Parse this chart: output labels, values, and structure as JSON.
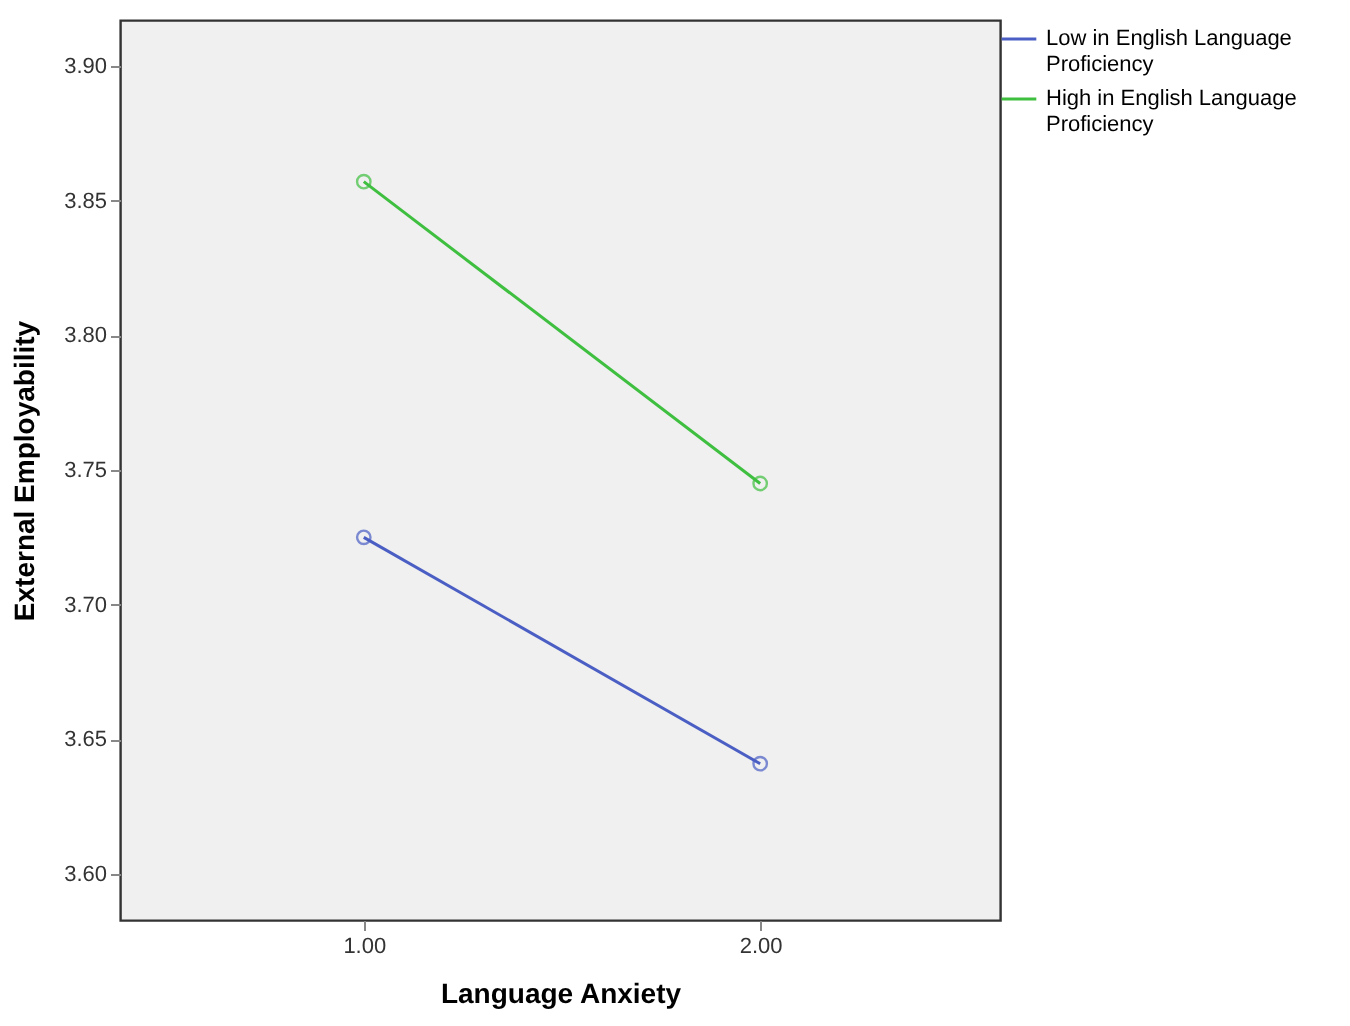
{
  "chart_data": {
    "type": "line",
    "xlabel": "Language Anxiety",
    "ylabel": "External Employability",
    "x": [
      1.0,
      2.0
    ],
    "series": [
      {
        "name": "Low in English Language Proficiency",
        "color": "#4a5ec4",
        "values": [
          3.725,
          3.641
        ]
      },
      {
        "name": "High in English Language Proficiency",
        "color": "#3fbf3f",
        "values": [
          3.857,
          3.745
        ]
      }
    ],
    "xlim": [
      0.385,
      2.605
    ],
    "xticks": [
      {
        "value": 1,
        "label": "1.00"
      },
      {
        "value": 2,
        "label": "2.00"
      }
    ],
    "ylim": [
      3.583,
      3.917
    ],
    "yticks": [
      {
        "value": 3.6,
        "label": "3.60"
      },
      {
        "value": 3.65,
        "label": "3.65"
      },
      {
        "value": 3.7,
        "label": "3.70"
      },
      {
        "value": 3.75,
        "label": "3.75"
      },
      {
        "value": 3.8,
        "label": "3.80"
      },
      {
        "value": 3.85,
        "label": "3.85"
      },
      {
        "value": 3.9,
        "label": "3.90"
      }
    ],
    "grid": false,
    "legend": "top right",
    "marker": "circle",
    "line_style": "solid"
  }
}
